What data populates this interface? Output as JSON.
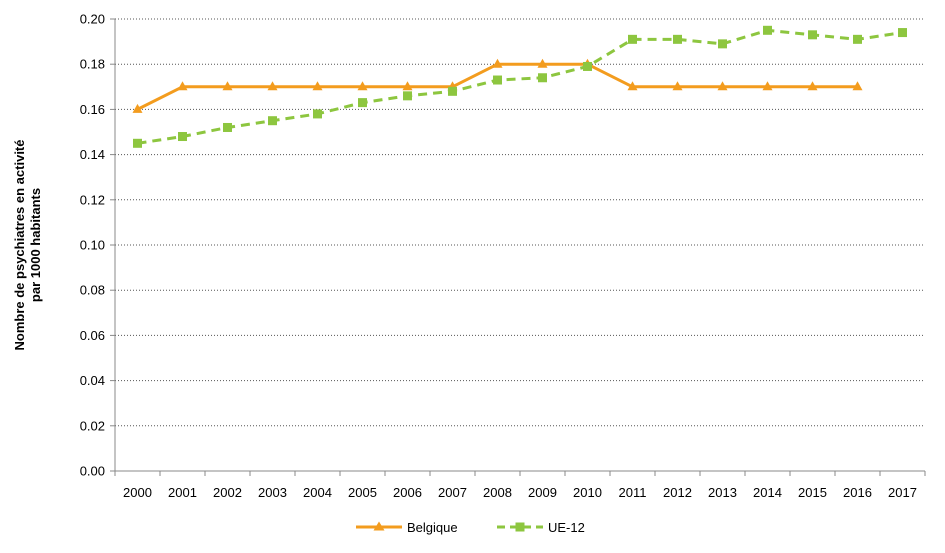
{
  "chart_data": {
    "type": "line",
    "title": "",
    "xlabel": "",
    "ylabel_lines": [
      "Nombre de psychiatres en activité",
      "par 1000 habitants"
    ],
    "x": [
      "2000",
      "2001",
      "2002",
      "2003",
      "2004",
      "2005",
      "2006",
      "2007",
      "2008",
      "2009",
      "2010",
      "2011",
      "2012",
      "2013",
      "2014",
      "2015",
      "2016",
      "2017"
    ],
    "ylim": [
      0,
      0.2
    ],
    "yticks": [
      "0.00",
      "0.02",
      "0.04",
      "0.06",
      "0.08",
      "0.10",
      "0.12",
      "0.14",
      "0.16",
      "0.18",
      "0.20"
    ],
    "grid": "horizontal dotted",
    "legend_position": "bottom",
    "series": [
      {
        "name": "Belgique",
        "color": "#F39C1E",
        "marker": "triangle",
        "line_style": "solid",
        "values": [
          0.16,
          0.17,
          0.17,
          0.17,
          0.17,
          0.17,
          0.17,
          0.17,
          0.18,
          0.18,
          0.18,
          0.17,
          0.17,
          0.17,
          0.17,
          0.17,
          0.17,
          null
        ]
      },
      {
        "name": "UE-12",
        "color": "#8DC63F",
        "marker": "square",
        "line_style": "dashed",
        "values": [
          0.145,
          0.148,
          0.152,
          0.155,
          0.158,
          0.163,
          0.166,
          0.168,
          0.173,
          0.174,
          0.179,
          0.191,
          0.191,
          0.189,
          0.195,
          0.193,
          0.191,
          0.194
        ]
      }
    ]
  }
}
